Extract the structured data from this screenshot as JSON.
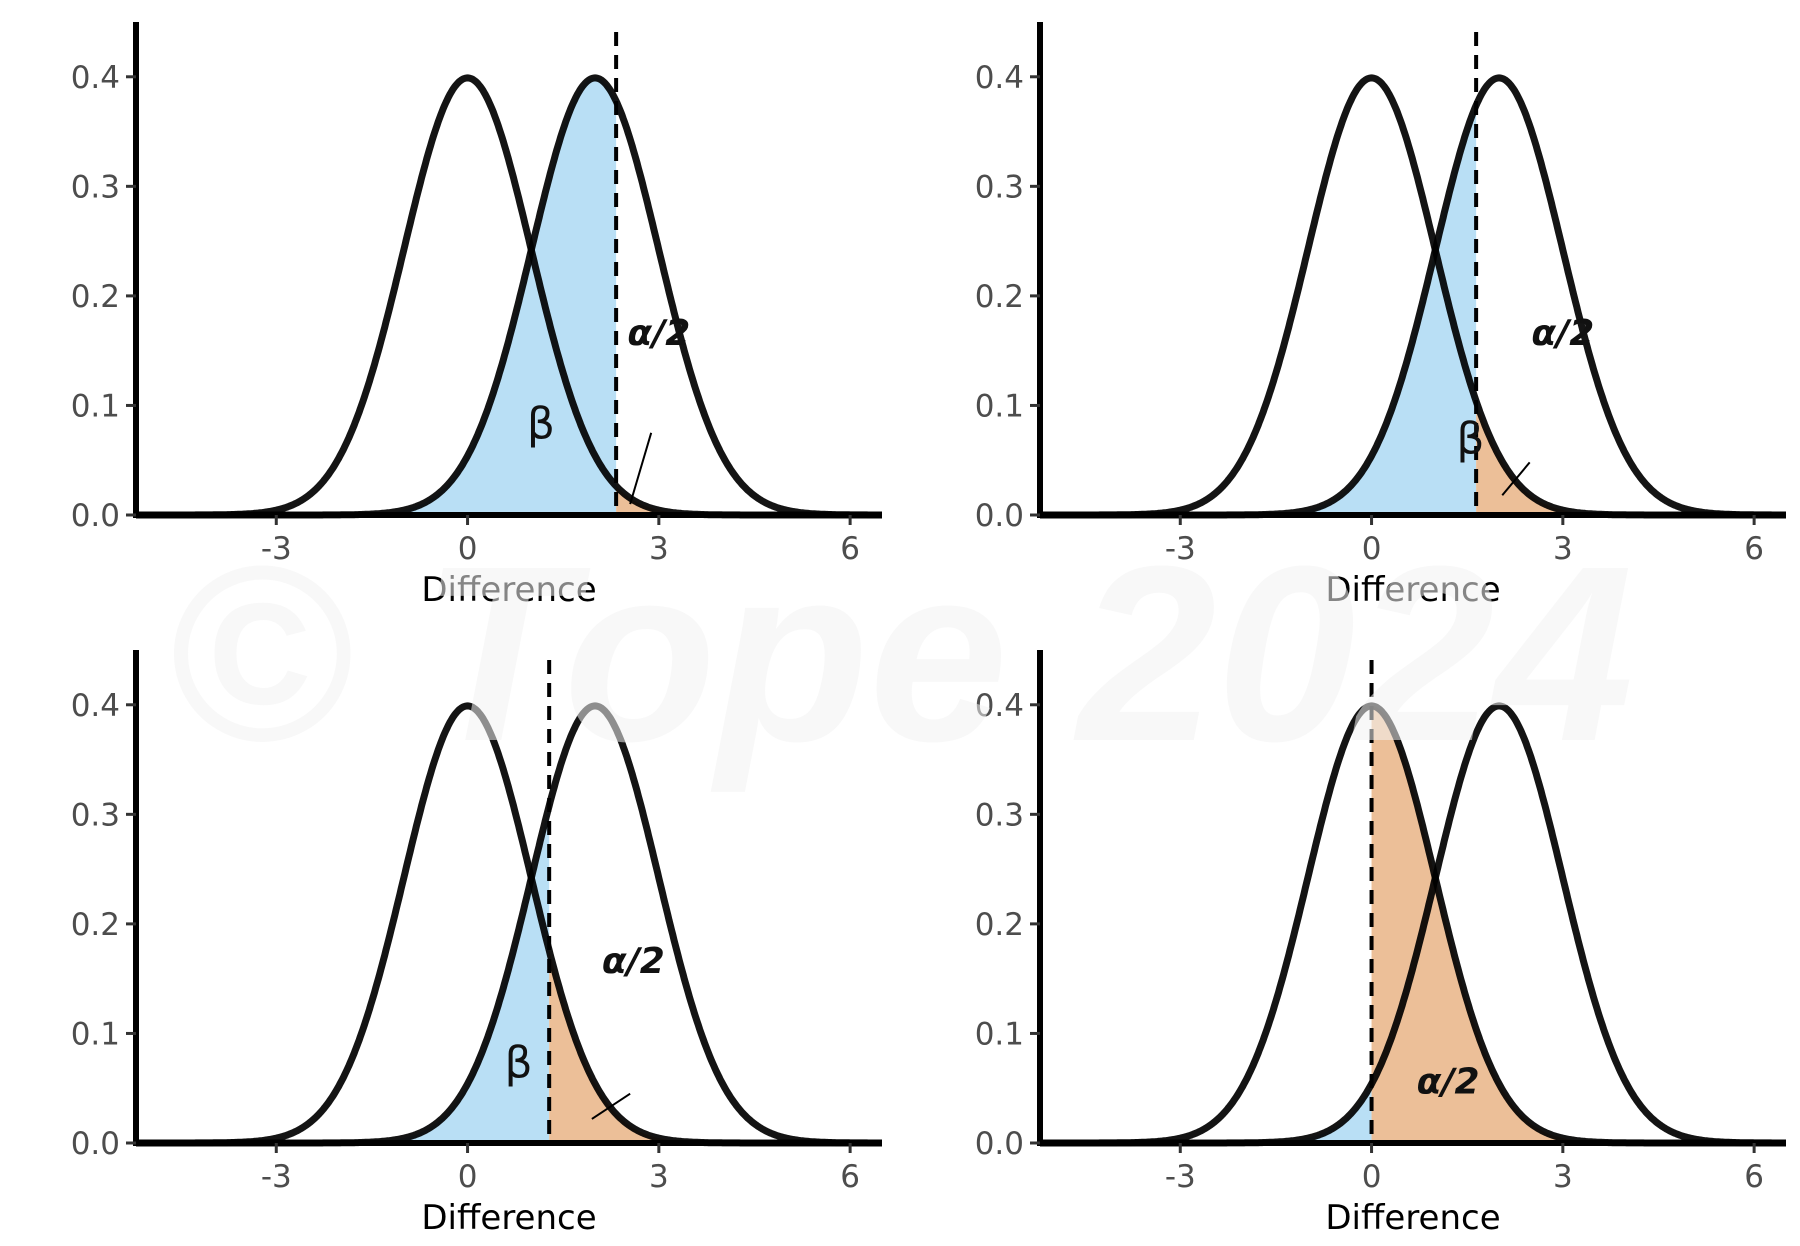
{
  "watermark": "© Tope 2024",
  "colors": {
    "beta_fill": "#b9dff5",
    "alpha_fill": "#ecbf98",
    "curve": "#000000",
    "watermark": "#f2f2f2"
  },
  "chart_data": [
    {
      "type": "area",
      "xlabel": "Difference",
      "ylabel": "",
      "xlim": [
        -5.2,
        6.5
      ],
      "ylim": [
        0,
        0.45
      ],
      "x_ticks": [
        "-3",
        "0",
        "3",
        "6"
      ],
      "y_ticks": [
        "0.0",
        "0.1",
        "0.2",
        "0.3",
        "0.4"
      ],
      "grid": false,
      "series": [
        {
          "distribution": "normal",
          "mean": 0,
          "sd": 1
        },
        {
          "distribution": "normal",
          "mean": 2,
          "sd": 1
        }
      ],
      "critical_value": 2.33,
      "regions": {
        "beta": "β",
        "alpha": "α/2"
      }
    },
    {
      "type": "area",
      "xlabel": "Difference",
      "ylabel": "",
      "xlim": [
        -5.2,
        6.5
      ],
      "ylim": [
        0,
        0.45
      ],
      "x_ticks": [
        "-3",
        "0",
        "3",
        "6"
      ],
      "y_ticks": [
        "0.0",
        "0.1",
        "0.2",
        "0.3",
        "0.4"
      ],
      "grid": false,
      "series": [
        {
          "distribution": "normal",
          "mean": 0,
          "sd": 1
        },
        {
          "distribution": "normal",
          "mean": 2,
          "sd": 1
        }
      ],
      "critical_value": 1.64,
      "regions": {
        "beta": "β",
        "alpha": "α/2"
      }
    },
    {
      "type": "area",
      "xlabel": "Difference",
      "ylabel": "",
      "xlim": [
        -5.2,
        6.5
      ],
      "ylim": [
        0,
        0.45
      ],
      "x_ticks": [
        "-3",
        "0",
        "3",
        "6"
      ],
      "y_ticks": [
        "0.0",
        "0.1",
        "0.2",
        "0.3",
        "0.4"
      ],
      "grid": false,
      "series": [
        {
          "distribution": "normal",
          "mean": 0,
          "sd": 1
        },
        {
          "distribution": "normal",
          "mean": 2,
          "sd": 1
        }
      ],
      "critical_value": 1.28,
      "regions": {
        "beta": "β",
        "alpha": "α/2"
      }
    },
    {
      "type": "area",
      "xlabel": "Difference",
      "ylabel": "",
      "xlim": [
        -5.2,
        6.5
      ],
      "ylim": [
        0,
        0.45
      ],
      "x_ticks": [
        "-3",
        "0",
        "3",
        "6"
      ],
      "y_ticks": [
        "0.0",
        "0.1",
        "0.2",
        "0.3",
        "0.4"
      ],
      "grid": false,
      "series": [
        {
          "distribution": "normal",
          "mean": 0,
          "sd": 1
        },
        {
          "distribution": "normal",
          "mean": 2,
          "sd": 1
        }
      ],
      "critical_value": 0,
      "regions": {
        "beta": "",
        "alpha": "α/2"
      }
    }
  ]
}
